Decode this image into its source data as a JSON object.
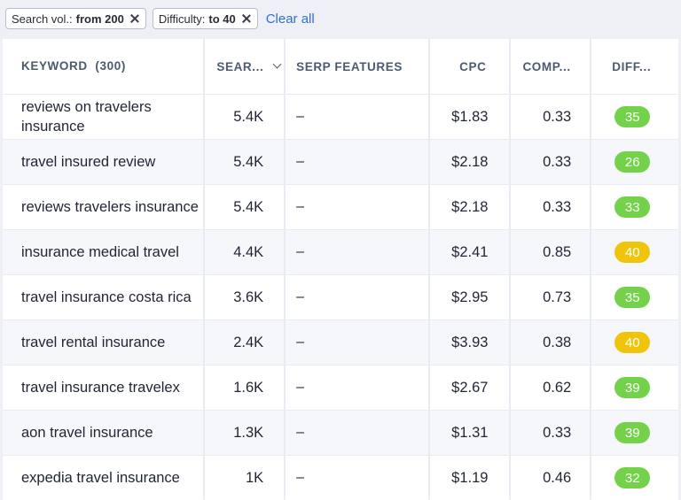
{
  "filters": {
    "chips": [
      {
        "label": "Search vol.:",
        "value": "from 200"
      },
      {
        "label": "Difficulty:",
        "value": "to 40"
      }
    ],
    "clear_all": "Clear all"
  },
  "table": {
    "columns": {
      "keyword": "KEYWORD",
      "keyword_count": "(300)",
      "search": "SEAR...",
      "serp": "SERP FEATURES",
      "cpc": "CPC",
      "comp": "COMP...",
      "diff": "DIFF..."
    },
    "colors": {
      "green": "#74d14a",
      "yellow": "#f1c40c"
    },
    "rows": [
      {
        "keyword": "reviews on travelers insurance",
        "volume": "5.4K",
        "serp": "–",
        "cpc": "$1.83",
        "comp": "0.33",
        "diff": "35",
        "level": "green"
      },
      {
        "keyword": "travel insured review",
        "volume": "5.4K",
        "serp": "–",
        "cpc": "$2.18",
        "comp": "0.33",
        "diff": "26",
        "level": "green"
      },
      {
        "keyword": "reviews travelers insurance",
        "volume": "5.4K",
        "serp": "–",
        "cpc": "$2.18",
        "comp": "0.33",
        "diff": "33",
        "level": "green"
      },
      {
        "keyword": "insurance medical travel",
        "volume": "4.4K",
        "serp": "–",
        "cpc": "$2.41",
        "comp": "0.85",
        "diff": "40",
        "level": "yellow"
      },
      {
        "keyword": "travel insurance costa rica",
        "volume": "3.6K",
        "serp": "–",
        "cpc": "$2.95",
        "comp": "0.73",
        "diff": "35",
        "level": "green"
      },
      {
        "keyword": "travel rental insurance",
        "volume": "2.4K",
        "serp": "–",
        "cpc": "$3.93",
        "comp": "0.38",
        "diff": "40",
        "level": "yellow"
      },
      {
        "keyword": "travel insurance travelex",
        "volume": "1.6K",
        "serp": "–",
        "cpc": "$2.67",
        "comp": "0.62",
        "diff": "39",
        "level": "green"
      },
      {
        "keyword": "aon travel insurance",
        "volume": "1.3K",
        "serp": "–",
        "cpc": "$1.31",
        "comp": "0.33",
        "diff": "39",
        "level": "green"
      },
      {
        "keyword": "expedia travel insurance",
        "volume": "1K",
        "serp": "–",
        "cpc": "$1.19",
        "comp": "0.46",
        "diff": "32",
        "level": "green"
      }
    ]
  }
}
